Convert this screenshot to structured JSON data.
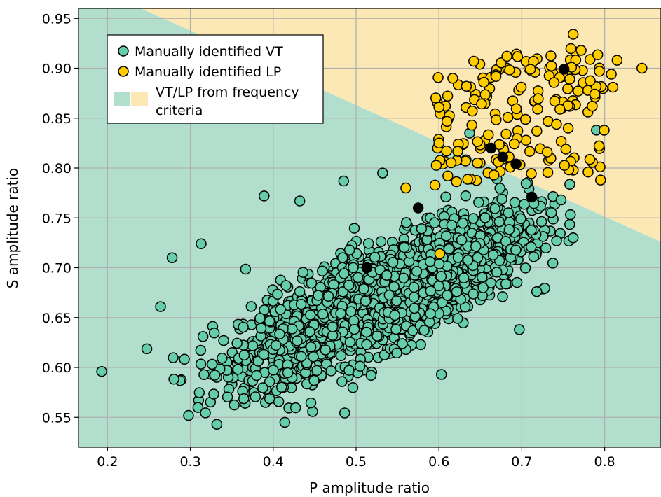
{
  "chart_data": {
    "type": "scatter",
    "xlabel": "P amplitude ratio",
    "ylabel": "S amplitude ratio",
    "xlim": [
      0.165,
      0.868
    ],
    "ylim": [
      0.52,
      0.96
    ],
    "xticks": [
      0.2,
      0.3,
      0.4,
      0.5,
      0.6,
      0.7,
      0.8
    ],
    "xtick_labels": [
      "0.2",
      "0.3",
      "0.4",
      "0.5",
      "0.6",
      "0.7",
      "0.8"
    ],
    "yticks": [
      0.55,
      0.6,
      0.65,
      0.7,
      0.75,
      0.8,
      0.85,
      0.9,
      0.95
    ],
    "ytick_labels": [
      "0.55",
      "0.60",
      "0.65",
      "0.70",
      "0.75",
      "0.80",
      "0.85",
      "0.90",
      "0.95"
    ],
    "grid": true,
    "legend_placement": "top-left",
    "regions": {
      "description_label": "VT/LP from frequency criteria",
      "boundary": [
        [
          0.24,
          0.96
        ],
        [
          0.868,
          0.726
        ]
      ],
      "vt_color": "#b2dfcd",
      "lp_color": "#fbe8b5"
    },
    "series": [
      {
        "name": "Manually identified VT",
        "color": "#66cdaa",
        "approx_count": 2200,
        "highlighted_points": [
          [
            0.193,
            0.596
          ],
          [
            0.264,
            0.661
          ],
          [
            0.278,
            0.71
          ],
          [
            0.313,
            0.724
          ],
          [
            0.332,
            0.543
          ],
          [
            0.389,
            0.772
          ],
          [
            0.414,
            0.545
          ],
          [
            0.432,
            0.767
          ],
          [
            0.485,
            0.787
          ],
          [
            0.532,
            0.795
          ],
          [
            0.603,
            0.593
          ],
          [
            0.611,
            0.849
          ],
          [
            0.637,
            0.835
          ],
          [
            0.697,
            0.638
          ],
          [
            0.718,
            0.676
          ],
          [
            0.742,
            0.727
          ],
          [
            0.762,
            0.73
          ],
          [
            0.79,
            0.838
          ]
        ]
      },
      {
        "name": "Manually identified LP",
        "color": "#ffcc00",
        "approx_count": 170,
        "highlighted_points": [
          [
            0.6,
            0.861
          ],
          [
            0.642,
            0.907
          ],
          [
            0.682,
            0.912
          ],
          [
            0.762,
            0.934
          ],
          [
            0.815,
            0.908
          ],
          [
            0.845,
            0.9
          ],
          [
            0.808,
            0.894
          ],
          [
            0.81,
            0.881
          ],
          [
            0.601,
            0.714
          ],
          [
            0.56,
            0.78
          ],
          [
            0.785,
            0.862
          ],
          [
            0.78,
            0.796
          ],
          [
            0.795,
            0.788
          ],
          [
            0.76,
            0.901
          ]
        ]
      },
      {
        "name": "",
        "color": "#000000",
        "points": [
          [
            0.513,
            0.7
          ],
          [
            0.575,
            0.76
          ],
          [
            0.663,
            0.82
          ],
          [
            0.677,
            0.811
          ],
          [
            0.693,
            0.804
          ],
          [
            0.712,
            0.771
          ],
          [
            0.751,
            0.899
          ]
        ]
      }
    ]
  },
  "legend": {
    "vt_label": "Manually identified VT",
    "lp_label": "Manually identified LP",
    "region_label_line1": "VT/LP from frequency",
    "region_label_line2": "criteria"
  }
}
